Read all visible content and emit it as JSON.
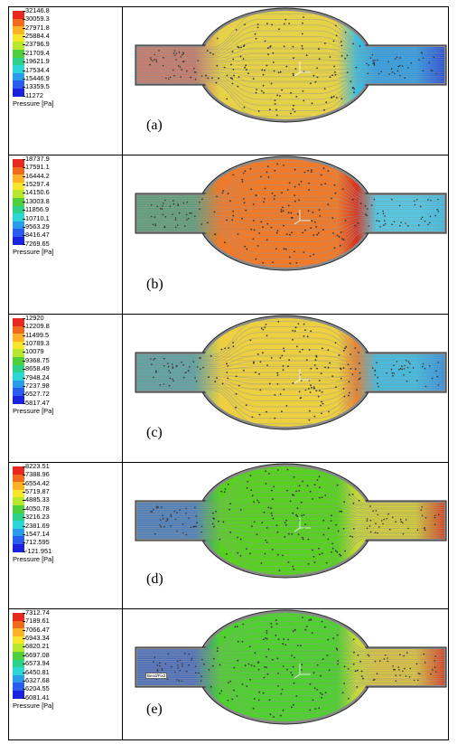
{
  "unit_label": "Pressure [Pa]",
  "panels": [
    {
      "label": "(a)",
      "ticks": [
        "32146.8",
        "30059.3",
        "27971.8",
        "25884.4",
        "23796.9",
        "21709.4",
        "19621.9",
        "17534.4",
        "15446.9",
        "13359.5",
        "11272"
      ],
      "inlet_color": "#c97a68",
      "bulb_color": "#e6d247",
      "outlet_color": "#2aa0ec",
      "outlet_end_color": "#1f3fe0",
      "front_color": "#3cc0e0",
      "stream_tag": ""
    },
    {
      "label": "(b)",
      "ticks": [
        "18737.9",
        "17591.1",
        "16444.2",
        "15297.4",
        "14150.6",
        "13003.8",
        "11856.9",
        "10710.1",
        "9563.29",
        "8416.47",
        "7269.65"
      ],
      "inlet_color": "#5ea079",
      "bulb_color": "#ef7a2a",
      "outlet_color": "#4ccfee",
      "outlet_end_color": "#3cbfe8",
      "front_color": "#d8321f",
      "stream_tag": ""
    },
    {
      "label": "(c)",
      "ticks": [
        "12920",
        "12209.8",
        "11499.5",
        "10789.3",
        "10079",
        "9368.75",
        "8658.49",
        "7948.24",
        "7237.98",
        "6527.72",
        "5817.47"
      ],
      "inlet_color": "#5aa4a3",
      "bulb_color": "#ecd040",
      "outlet_color": "#3ac0ea",
      "outlet_end_color": "#2c8de6",
      "front_color": "#e88233",
      "stream_tag": ""
    },
    {
      "label": "(d)",
      "ticks": [
        "8223.51",
        "7388.96",
        "6554.42",
        "5719.87",
        "4885.33",
        "4050.78",
        "3216.23",
        "2381.69",
        "1547.14",
        "712.595",
        "-121.951"
      ],
      "inlet_color": "#4a7fc0",
      "bulb_color": "#58d022",
      "outlet_color": "#d8d233",
      "outlet_end_color": "#e02a18",
      "front_color": "#c6d83a",
      "stream_tag": ""
    },
    {
      "label": "(e)",
      "ticks": [
        "7312.74",
        "7189.61",
        "7066.47",
        "6943.34",
        "6820.21",
        "6697.08",
        "6573.94",
        "6450.81",
        "6327.68",
        "6204.55",
        "6081.41"
      ],
      "inlet_color": "#4a6fc0",
      "bulb_color": "#4fcf30",
      "outlet_color": "#e0c83a",
      "outlet_end_color": "#e02a18",
      "front_color": "#c8d83a",
      "stream_tag": "Bend/Fix2"
    }
  ],
  "colorbar_colors": [
    "#e8281c",
    "#f46a1c",
    "#fbb224",
    "#f8e62a",
    "#b8e82c",
    "#4ed03a",
    "#2cd28a",
    "#2ad6d8",
    "#2a9cec",
    "#2a5cf0",
    "#1a22e0"
  ]
}
